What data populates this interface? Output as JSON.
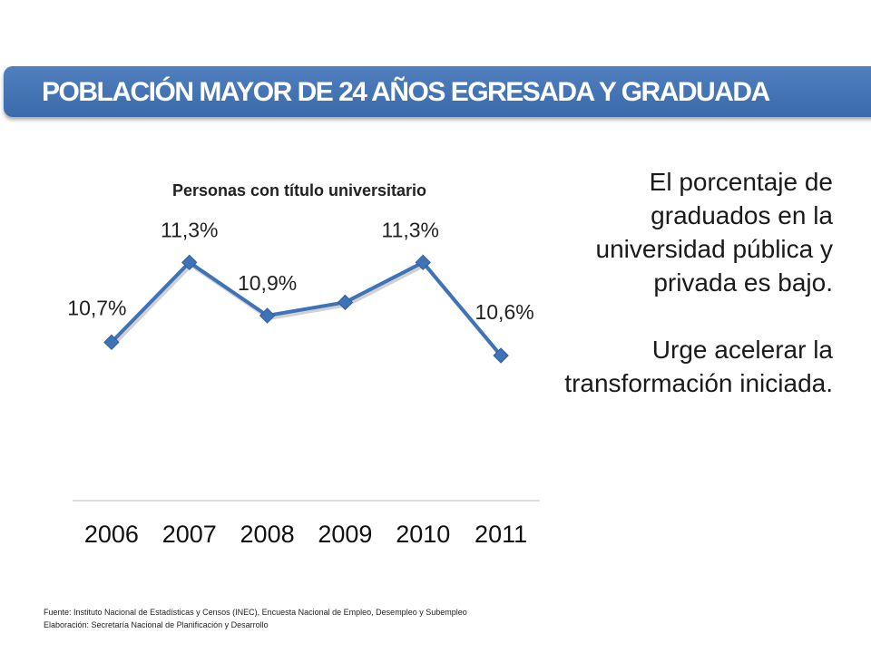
{
  "header": {
    "title": "POBLACIÓN MAYOR DE 24 AÑOS EGRESADA Y GRADUADA"
  },
  "chart_data": {
    "type": "line",
    "title": "Personas con título universitario",
    "x": [
      "2006",
      "2007",
      "2008",
      "2009",
      "2010",
      "2011"
    ],
    "series": [
      {
        "values": [
          10.7,
          11.3,
          10.9,
          11.0,
          11.3,
          10.6
        ]
      }
    ],
    "data_labels": [
      "10,7%",
      "11,3%",
      "10,9%",
      "",
      "11,3%",
      "10,6%"
    ],
    "ylim": [
      10.0,
      11.5
    ],
    "grid": false,
    "line_color": "#3f73b8"
  },
  "side_text": {
    "paragraph1": "El porcentaje de graduados en la universidad pública y privada es bajo.",
    "paragraph2": "Urge acelerar la transformación iniciada."
  },
  "footer": {
    "source": "Fuente:  Instituto Nacional de Estadísticas y Censos  (INEC), Encuesta Nacional de Empleo, Desempleo y Subempleo",
    "elaboration": "Elaboración: Secretaría Nacional de Planificación y Desarrollo"
  }
}
